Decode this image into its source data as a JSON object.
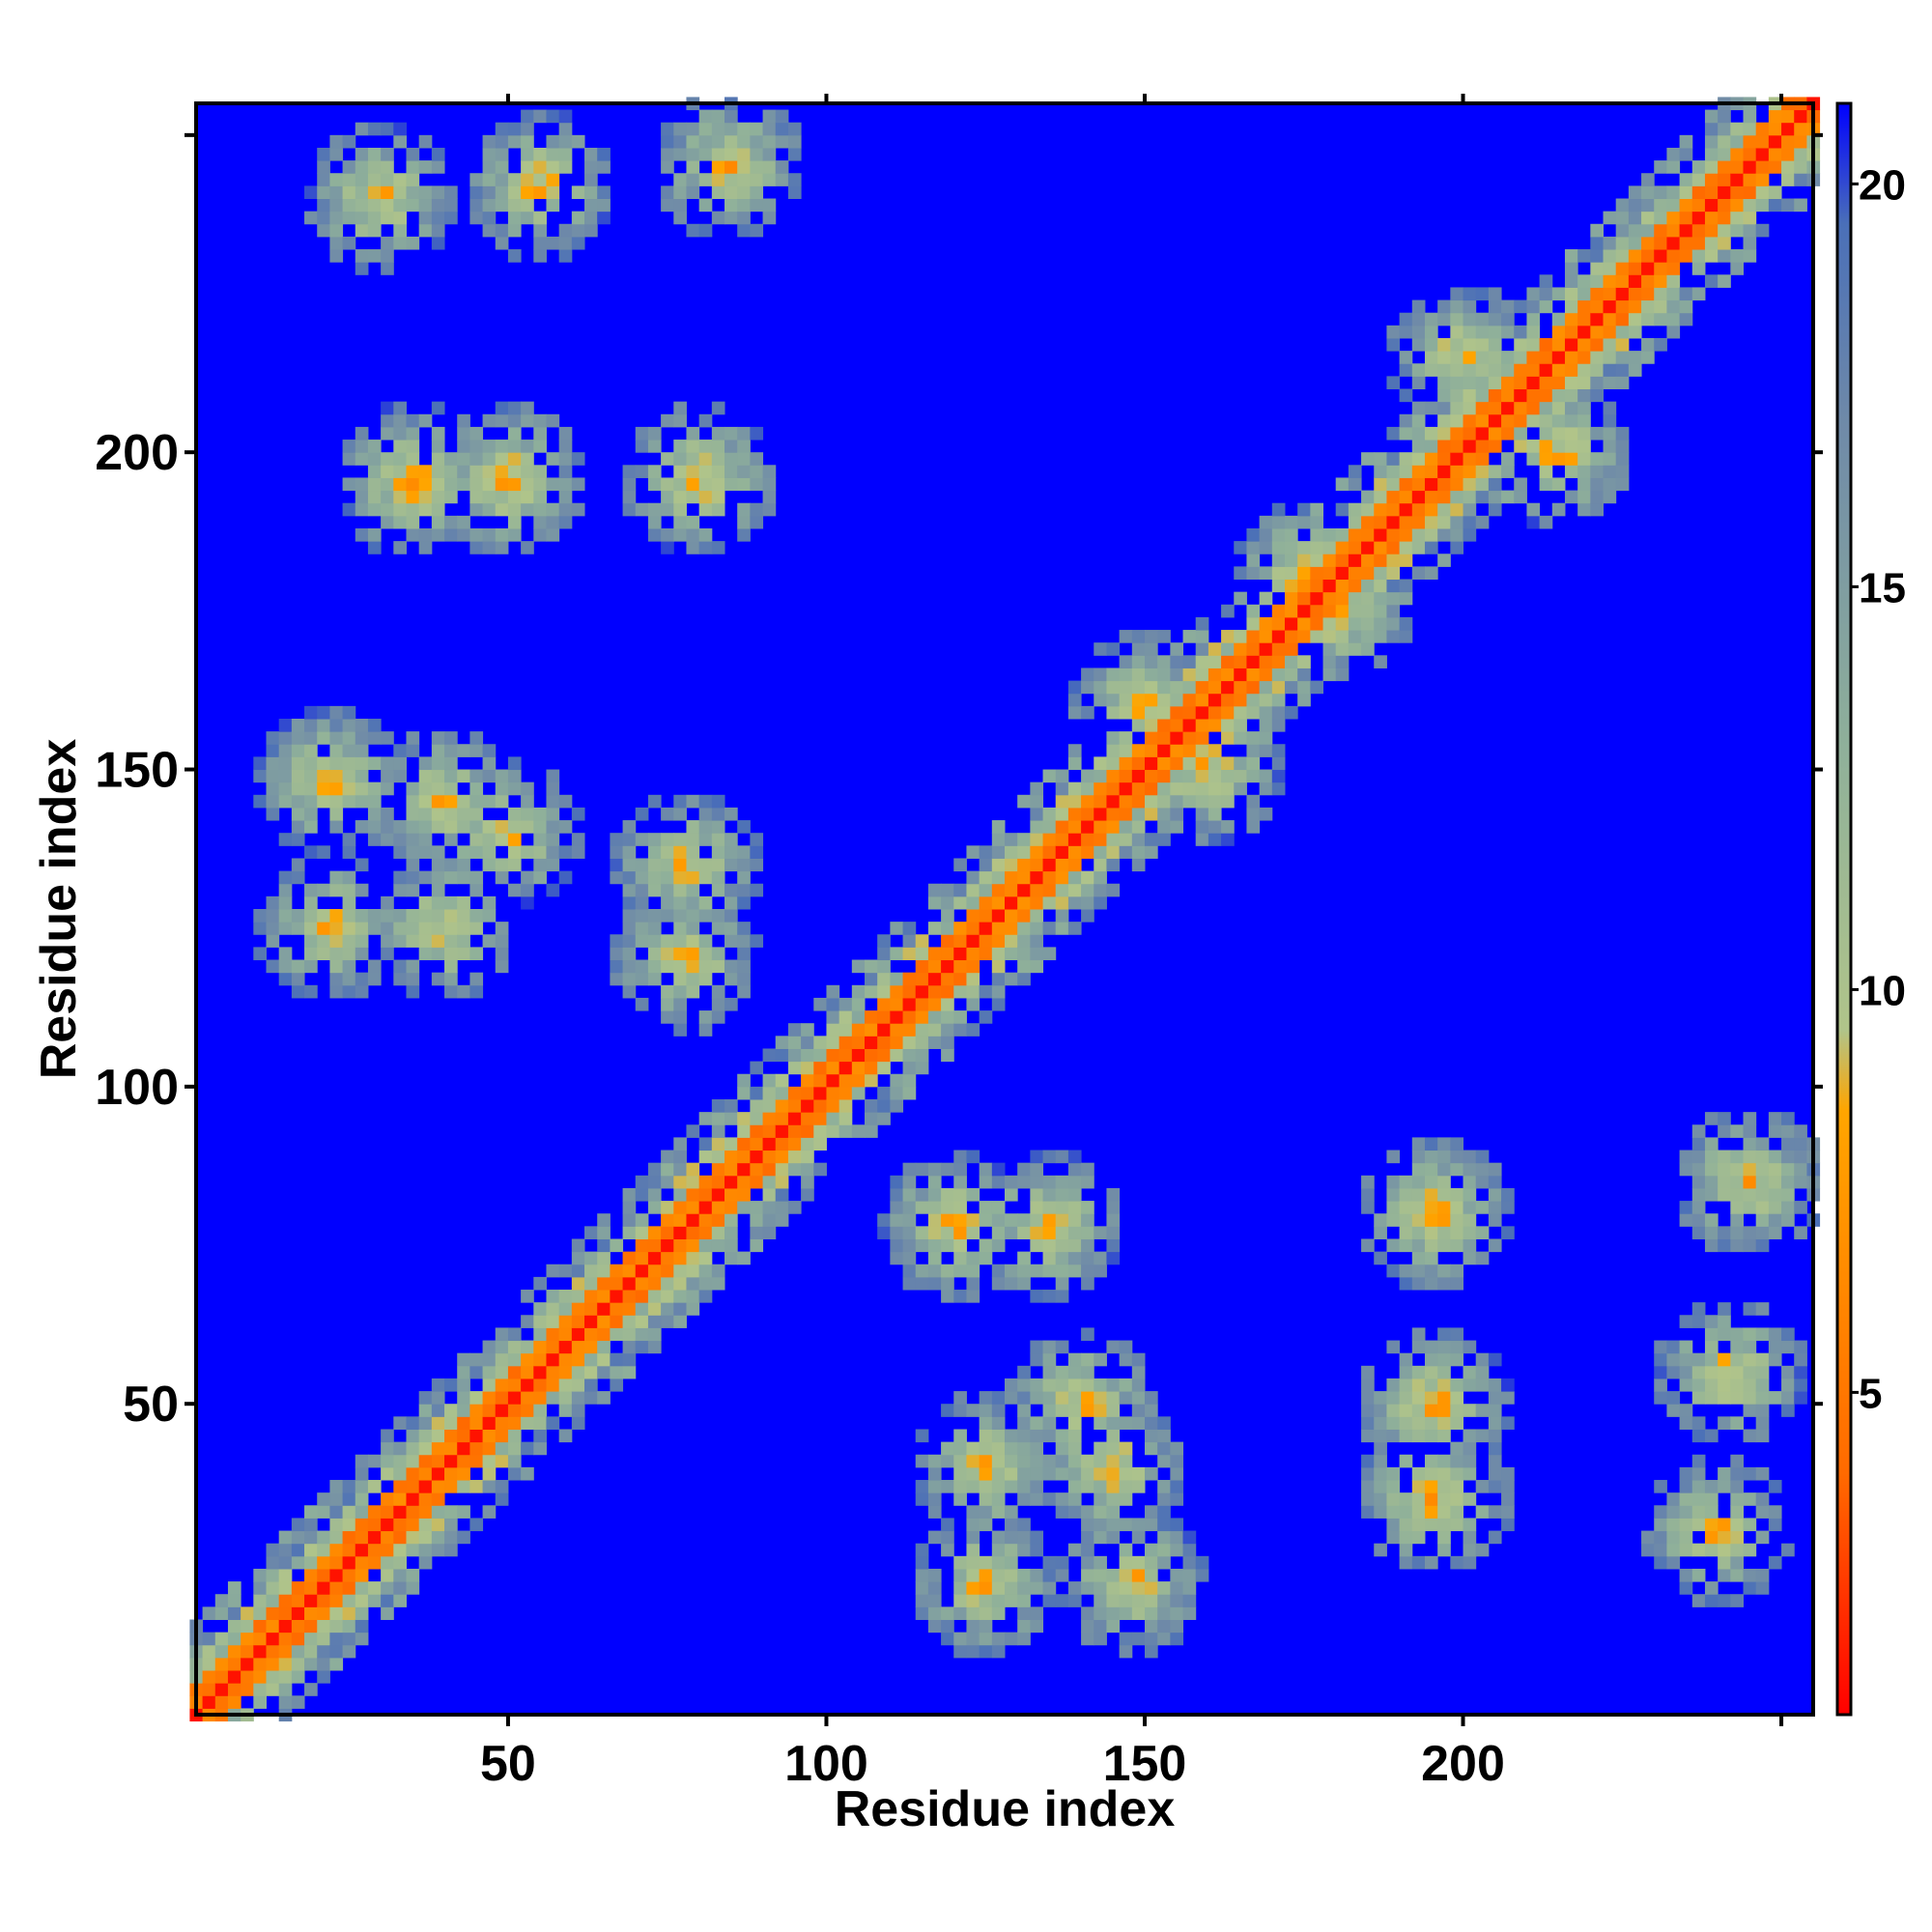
{
  "chart_data": {
    "type": "heatmap",
    "title": "",
    "xlabel": "Residue index",
    "ylabel": "Residue index",
    "xlim": [
      1,
      255
    ],
    "ylim": [
      1,
      255
    ],
    "x_ticks": [
      50,
      100,
      150,
      200
    ],
    "y_ticks": [
      50,
      100,
      150,
      200
    ],
    "colorbar": {
      "min": 1,
      "max": 21,
      "ticks": [
        5,
        10,
        15,
        20
      ],
      "colors": [
        "#ff0000",
        "#ff6a00",
        "#ffa500",
        "#b0c48a",
        "#8fb09a",
        "#6f8aa8",
        "#4a6fb8",
        "#0000ff"
      ],
      "stops": [
        1,
        4,
        8.5,
        9.5,
        13,
        17,
        19.5,
        21
      ]
    },
    "background_color": "#0000ff",
    "description_features": {
      "diagonal": "strong red band along i=j",
      "helix_crosses": [
        [
          35,
          35
        ],
        [
          130,
          130
        ],
        [
          140,
          140
        ],
        [
          125,
          125
        ]
      ],
      "off_diagonal_contacts": [
        [
          78,
          135
        ],
        [
          78,
          120
        ],
        [
          50,
          140
        ],
        [
          22,
          148
        ],
        [
          22,
          125
        ],
        [
          35,
          196
        ],
        [
          50,
          196
        ],
        [
          80,
          196
        ],
        [
          125,
          40
        ],
        [
          145,
          40
        ],
        [
          195,
          35
        ],
        [
          195,
          50
        ],
        [
          195,
          80
        ],
        [
          240,
          30
        ],
        [
          242,
          55
        ],
        [
          245,
          85
        ],
        [
          180,
          175
        ],
        [
          215,
          200
        ],
        [
          150,
          160
        ]
      ]
    }
  }
}
